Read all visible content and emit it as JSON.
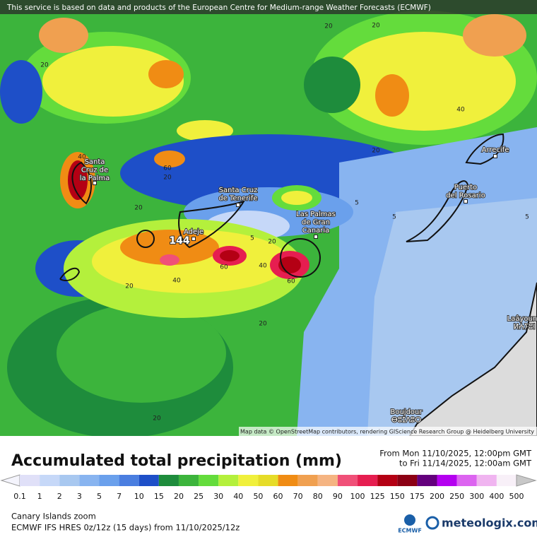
{
  "attribution_top": "This service is based on data and products of the European Centre for Medium-range Weather Forecasts (ECMWF)",
  "map_credit": "Map data © OpenStreetMap contributors, rendering GIScience Research Group @ Heidelberg University",
  "places": [
    {
      "lines": [
        "Santa",
        "Cruz de",
        "la Palma"
      ]
    },
    {
      "lines": [
        "Santa Cruz",
        "de Tenerife"
      ]
    },
    {
      "lines": [
        "Las Palmas",
        "de Gran",
        "Canaria"
      ]
    },
    {
      "lines": [
        "Adeje"
      ]
    },
    {
      "lines": [
        "Puerto",
        "del Rosario"
      ]
    },
    {
      "lines": [
        "Arrecife"
      ]
    },
    {
      "lines": [
        "Laâyoune",
        "ⵍⵄⵢⵓⵏ"
      ]
    },
    {
      "lines": [
        "Boujdour",
        "ⴱⵓⵊⴷⵓⵔ"
      ]
    }
  ],
  "max_value": 144,
  "contour_labels": [
    20,
    20,
    20,
    40,
    20,
    40,
    60,
    20,
    20,
    5,
    5,
    5,
    5,
    20,
    60,
    40,
    40,
    20,
    60,
    20,
    20
  ],
  "title": "Accumulated total precipitation (mm)",
  "period_from": "From Mon 11/10/2025, 12:00pm GMT",
  "period_to": "to Fri 11/14/2025, 12:00am GMT",
  "colorbar": {
    "values": [
      0.1,
      1,
      2,
      3,
      5,
      7,
      10,
      15,
      20,
      25,
      30,
      40,
      50,
      60,
      70,
      80,
      90,
      100,
      125,
      150,
      175,
      200,
      250,
      300,
      400,
      500
    ],
    "colors": [
      "#f4f4fc",
      "#e0e0f8",
      "#c6d8f8",
      "#a8c8f0",
      "#88b4f0",
      "#6aa0ec",
      "#4a7ee0",
      "#1e4fc8",
      "#1e8c3c",
      "#3cb43c",
      "#64dc3c",
      "#b4f03c",
      "#f0f03c",
      "#e6dc28",
      "#f08c14",
      "#f0a050",
      "#f5b482",
      "#f05078",
      "#e61e50",
      "#b40014",
      "#8c0014",
      "#64007d",
      "#b400f0",
      "#dc64f0",
      "#f0b4f0",
      "#f8f0f8",
      "#c8c8c8"
    ]
  },
  "region": "Canary Islands zoom",
  "model": "ECMWF IFS HRES 0z/12z (15 days) from 11/10/2025/12z",
  "logo_ecmwf": "ECMWF",
  "logo_site": "meteologix.com"
}
